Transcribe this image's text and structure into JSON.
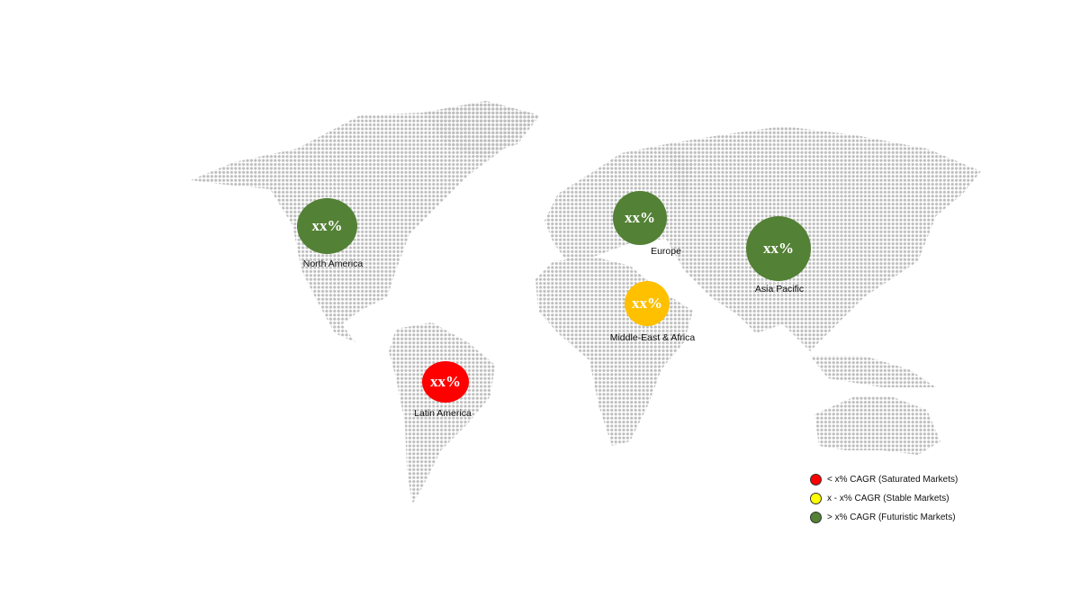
{
  "colors": {
    "saturated": "#ff0000",
    "stable": "#ffc000",
    "futuristic": "#538135",
    "legend_stable": "#ffff00",
    "map_dots": "#bdbdbd"
  },
  "regions": [
    {
      "name": "North America",
      "value": "xx%",
      "category": "futuristic"
    },
    {
      "name": "Europe",
      "value": "xx%",
      "category": "futuristic"
    },
    {
      "name": "Asia Pacific",
      "value": "xx%",
      "category": "futuristic"
    },
    {
      "name": "Middle-East & Africa",
      "value": "xx%",
      "category": "stable"
    },
    {
      "name": "Latin America",
      "value": "xx%",
      "category": "saturated"
    }
  ],
  "legend": [
    {
      "label": "< x% CAGR (Saturated Markets)",
      "category": "saturated"
    },
    {
      "label": "x - x% CAGR (Stable Markets)",
      "category": "stable"
    },
    {
      "label": "> x% CAGR (Futuristic Markets)",
      "category": "futuristic"
    }
  ]
}
